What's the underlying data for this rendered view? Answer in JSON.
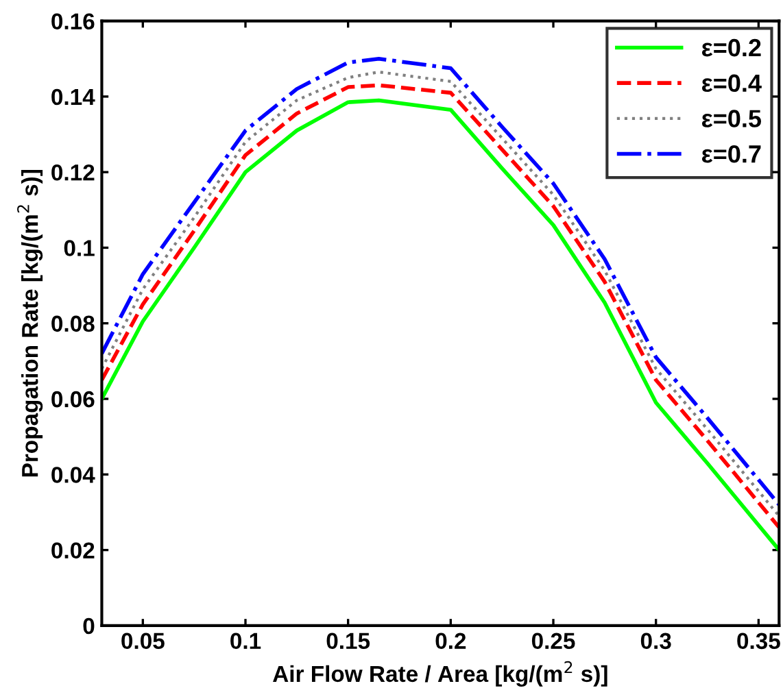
{
  "chart_data": {
    "type": "line",
    "xlabel": "Air Flow Rate / Area [kg/(m$^{2}$ s)]",
    "ylabel": "Propagation Rate [kg/(m$^{2}$ s)]",
    "x": [
      0.03,
      0.05,
      0.075,
      0.1,
      0.125,
      0.15,
      0.165,
      0.2,
      0.225,
      0.25,
      0.275,
      0.3,
      0.325,
      0.36
    ],
    "series": [
      {
        "name": "ε=0.2",
        "color": "#00ff00",
        "line_style": "solid",
        "values": [
          0.06,
          0.0805,
          0.1,
          0.12,
          0.131,
          0.1385,
          0.139,
          0.1365,
          0.121,
          0.106,
          0.0855,
          0.059,
          0.043,
          0.02
        ]
      },
      {
        "name": "ε=0.4",
        "color": "#ff0000",
        "line_style": "dashed",
        "values": [
          0.065,
          0.085,
          0.1045,
          0.1245,
          0.1355,
          0.1425,
          0.143,
          0.141,
          0.126,
          0.111,
          0.091,
          0.065,
          0.049,
          0.026
        ]
      },
      {
        "name": "ε=0.5",
        "color": "#808080",
        "line_style": "dotted",
        "values": [
          0.068,
          0.089,
          0.108,
          0.128,
          0.139,
          0.145,
          0.1465,
          0.144,
          0.129,
          0.114,
          0.094,
          0.068,
          0.052,
          0.029
        ]
      },
      {
        "name": "ε=0.7",
        "color": "#0000ff",
        "line_style": "dashdot",
        "values": [
          0.072,
          0.093,
          0.112,
          0.131,
          0.142,
          0.149,
          0.15,
          0.1475,
          0.132,
          0.117,
          0.097,
          0.071,
          0.055,
          0.032
        ]
      }
    ],
    "xlim": [
      0.03,
      0.36
    ],
    "xticks": [
      0.05,
      0.1,
      0.15,
      0.2,
      0.25,
      0.3,
      0.35
    ],
    "ylim": [
      0,
      0.16
    ],
    "yticks": [
      0,
      0.02,
      0.04,
      0.06,
      0.08,
      0.1,
      0.12,
      0.14,
      0.16
    ],
    "grid": false,
    "legend": "top right",
    "marker": "none"
  }
}
